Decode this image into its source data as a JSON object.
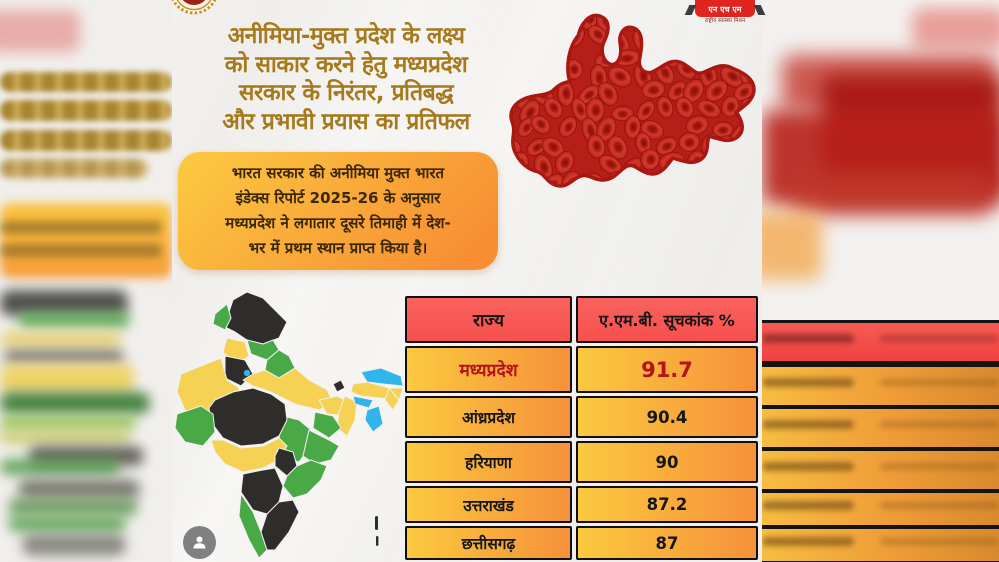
{
  "colors": {
    "gold": "#a6791c",
    "hb1": "#fcca41",
    "hb2": "#f78e34",
    "hdr": "#f6504d",
    "r1": "#fbc93e",
    "r2": "#f5913b",
    "hlred": "#b5121b",
    "blood": "#bf221a",
    "mapYellow": "#f5d154",
    "mapGreen": "#49a946",
    "mapBlack": "#2e2d2b",
    "mapBlue": "#2fb5ea"
  },
  "headline": {
    "lines": [
      "अनीमिया-मुक्त प्रदेश के लक्ष्य",
      "को साकार करने हेतु मध्यप्रदेश",
      "सरकार के  निरंतर, प्रतिबद्ध",
      "और प्रभावी प्रयास  का प्रतिफल"
    ]
  },
  "highlight_box": {
    "lines": [
      "भारत सरकार की अनीमिया मुक्त भारत",
      "इंडेक्स रिपोर्ट 2025-26 के अनुसार",
      "मध्यप्रदेश ने लगातार दूसरे तिमाही में देश-",
      "भर में प्रथम स्थान प्राप्त किया है।"
    ]
  },
  "table": {
    "headers": [
      "राज्य",
      "ए.एम.बी. सूचकांक %"
    ],
    "rows": [
      {
        "state": "मध्यप्रदेश",
        "value": "91.7",
        "highlight": true
      },
      {
        "state": "आंध्रप्रदेश",
        "value": "90.4"
      },
      {
        "state": "हरियाणा",
        "value": "90"
      },
      {
        "state": "उत्तराखंड",
        "value": "87.2"
      },
      {
        "state": "छत्तीसगढ़",
        "value": "87"
      }
    ]
  },
  "logos": {
    "nhm_text": "एन एच एम",
    "nhm_caption": "राष्ट्रीय स्वास्थ्य मिशन"
  }
}
